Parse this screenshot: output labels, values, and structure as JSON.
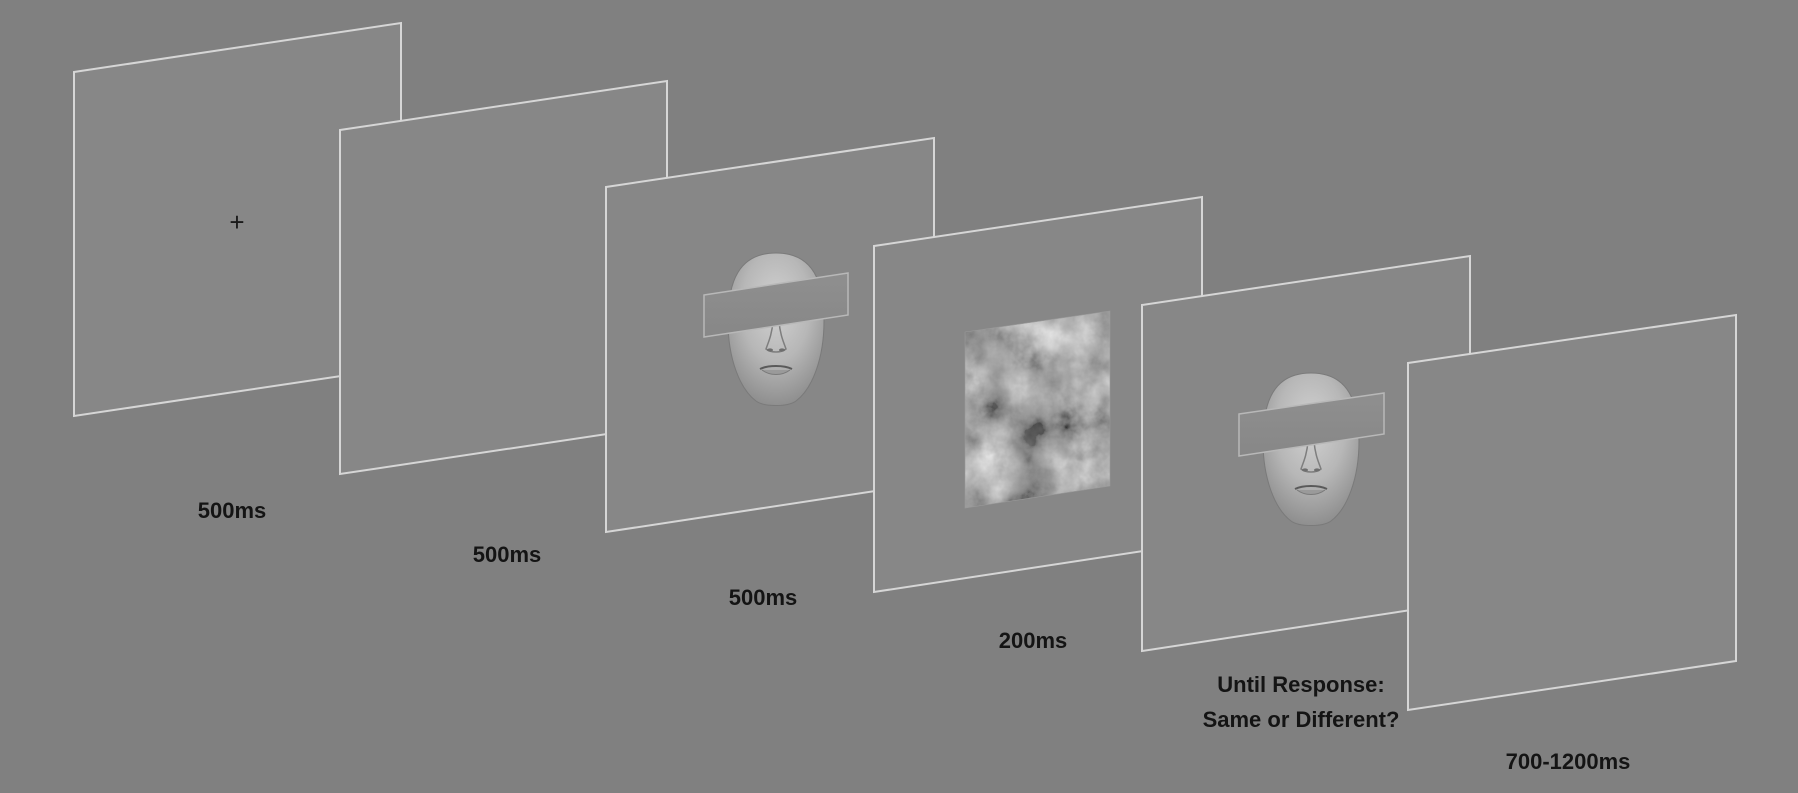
{
  "diagram": {
    "background_color": "#808080",
    "frame_fill_color": "#878787",
    "frame_stroke_color": "#d6d6d6",
    "frames": [
      {
        "id": "fixation",
        "content": "fixation-cross",
        "symbol": "+",
        "duration": "500ms"
      },
      {
        "id": "blank-1",
        "content": "blank",
        "duration": "500ms"
      },
      {
        "id": "study-face",
        "content": "face-with-eye-occluder",
        "duration": "500ms"
      },
      {
        "id": "noise-mask",
        "content": "noise-mask",
        "duration": "200ms"
      },
      {
        "id": "test-face",
        "content": "face-with-eye-occluder",
        "duration": "Until Response:",
        "duration_line2": "Same or Different?"
      },
      {
        "id": "blank-2",
        "content": "blank",
        "duration": "700-1200ms"
      }
    ]
  }
}
